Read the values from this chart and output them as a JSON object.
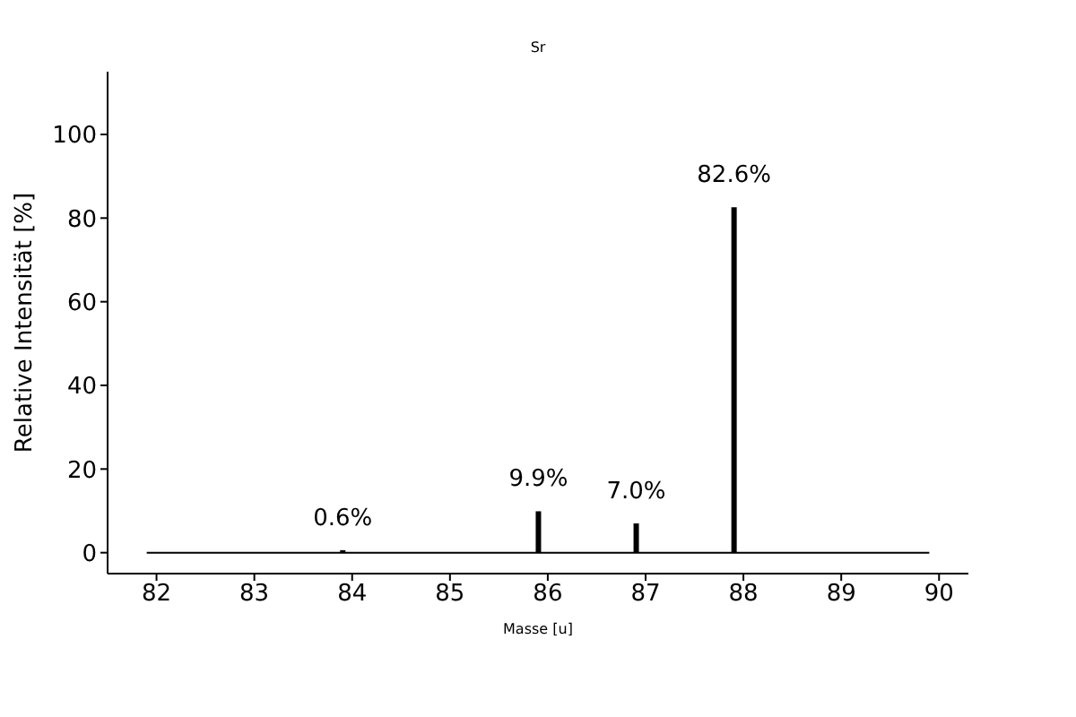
{
  "chart_data": {
    "type": "bar",
    "title": "Sr",
    "xlabel": "Masse [u]",
    "ylabel": "Relative Intensität [%]",
    "x": [
      83.9,
      85.9,
      86.9,
      87.9
    ],
    "series": [
      {
        "color": "#000000",
        "values": [
          0.6,
          9.9,
          7.0,
          82.6
        ],
        "value_labels": [
          "0.6%",
          "9.9%",
          "7.0%",
          "82.6%"
        ]
      },
      {
        "type": "line",
        "color": "#000000",
        "x": [
          81.9,
          89.9
        ],
        "values": [
          0,
          0
        ]
      }
    ],
    "xlim": [
      81.5,
      90.3
    ],
    "xticks": [
      82,
      83,
      84,
      85,
      86,
      87,
      88,
      89,
      90
    ],
    "ylim": [
      -5,
      115
    ],
    "yticks": [
      0,
      20,
      40,
      60,
      80,
      100
    ]
  }
}
